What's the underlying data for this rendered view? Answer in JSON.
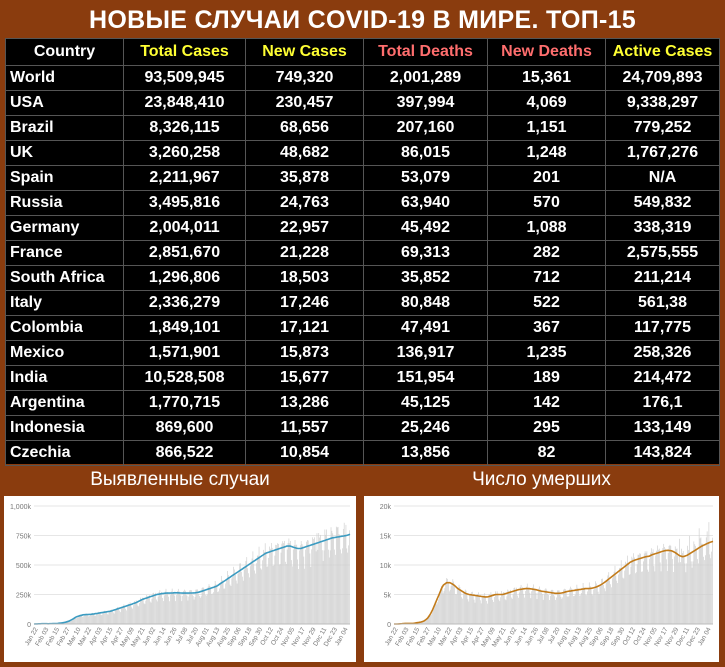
{
  "title": "НОВЫЕ СЛУЧАИ COVID-19 В МИРЕ. ТОП-15",
  "table": {
    "headers": [
      "Country",
      "Total Cases",
      "New Cases",
      "Total Deaths",
      "New Deaths",
      "Active Cases"
    ],
    "rows": [
      [
        "World",
        "93,509,945",
        "749,320",
        "2,001,289",
        "15,361",
        "24,709,893"
      ],
      [
        "USA",
        "23,848,410",
        "230,457",
        "397,994",
        "4,069",
        "9,338,297"
      ],
      [
        "Brazil",
        "8,326,115",
        "68,656",
        "207,160",
        "1,151",
        "779,252"
      ],
      [
        "UK",
        "3,260,258",
        "48,682",
        "86,015",
        "1,248",
        "1,767,276"
      ],
      [
        "Spain",
        "2,211,967",
        "35,878",
        "53,079",
        "201",
        "N/A"
      ],
      [
        "Russia",
        "3,495,816",
        "24,763",
        "63,940",
        "570",
        "549,832"
      ],
      [
        "Germany",
        "2,004,011",
        "22,957",
        "45,492",
        "1,088",
        "338,319"
      ],
      [
        "France",
        "2,851,670",
        "21,228",
        "69,313",
        "282",
        "2,575,555"
      ],
      [
        "South Africa",
        "1,296,806",
        "18,503",
        "35,852",
        "712",
        "211,214"
      ],
      [
        "Italy",
        "2,336,279",
        "17,246",
        "80,848",
        "522",
        "561,38"
      ],
      [
        "Colombia",
        "1,849,101",
        "17,121",
        "47,491",
        "367",
        "117,775"
      ],
      [
        "Mexico",
        "1,571,901",
        "15,873",
        "136,917",
        "1,235",
        "258,326"
      ],
      [
        "India",
        "10,528,508",
        "15,677",
        "151,954",
        "189",
        "214,472"
      ],
      [
        "Argentina",
        "1,770,715",
        "13,286",
        "45,125",
        "142",
        "176,1"
      ],
      [
        "Indonesia",
        "869,600",
        "11,557",
        "25,246",
        "295",
        "133,149"
      ],
      [
        "Czechia",
        "866,522",
        "10,854",
        "13,856",
        "82",
        "143,824"
      ]
    ]
  },
  "chart_data": [
    {
      "type": "bar",
      "title": "Выявленные случаи",
      "ylim": [
        0,
        1000
      ],
      "yticks": [
        "0",
        "250k",
        "500k",
        "750k",
        "1,000k"
      ],
      "xticks": [
        "Jan 22",
        "Feb 03",
        "Feb 15",
        "Feb 27",
        "Mar 10",
        "Mar 22",
        "Apr 03",
        "Apr 15",
        "Apr 27",
        "May 09",
        "May 21",
        "Jun 02",
        "Jun 14",
        "Jun 26",
        "Jul 08",
        "Jul 20",
        "Aug 01",
        "Aug 13",
        "Aug 25",
        "Sep 06",
        "Sep 18",
        "Sep 30",
        "Oct 12",
        "Oct 24",
        "Nov 05",
        "Nov 17",
        "Nov 29",
        "Dec 11",
        "Dec 23",
        "Jan 04"
      ],
      "trend": [
        0,
        1,
        2,
        3,
        2,
        3,
        4,
        6,
        10,
        15,
        25,
        40,
        60,
        70,
        78,
        80,
        82,
        85,
        90,
        95,
        100,
        105,
        110,
        120,
        130,
        140,
        150,
        160,
        170,
        180,
        195,
        210,
        220,
        230,
        240,
        250,
        255,
        260,
        262,
        262,
        265,
        264,
        262,
        262,
        262,
        263,
        265,
        270,
        280,
        290,
        300,
        310,
        320,
        340,
        360,
        380,
        400,
        420,
        440,
        460,
        480,
        500,
        520,
        540,
        560,
        580,
        600,
        610,
        620,
        630,
        640,
        650,
        660,
        660,
        650,
        640,
        640,
        650,
        660,
        670,
        680,
        690,
        700,
        710,
        720,
        730,
        735,
        740,
        745,
        750,
        760
      ],
      "bar_ratio_max": 1.12,
      "grid": true,
      "series_color": "#3b9bc1",
      "bar_color": "#cfcfcf"
    },
    {
      "type": "bar",
      "title": "Число умерших",
      "ylim": [
        0,
        20
      ],
      "yticks": [
        "0",
        "5k",
        "10k",
        "15k",
        "20k"
      ],
      "xticks": [
        "Jan 22",
        "Feb 03",
        "Feb 15",
        "Feb 27",
        "Mar 10",
        "Mar 22",
        "Apr 03",
        "Apr 15",
        "Apr 27",
        "May 09",
        "May 21",
        "Jun 02",
        "Jun 14",
        "Jun 26",
        "Jul 08",
        "Jul 20",
        "Aug 01",
        "Aug 13",
        "Aug 25",
        "Sep 06",
        "Sep 18",
        "Sep 30",
        "Oct 12",
        "Oct 24",
        "Nov 05",
        "Nov 17",
        "Nov 29",
        "Dec 11",
        "Dec 23",
        "Jan 04"
      ],
      "trend": [
        0,
        0,
        0.05,
        0.1,
        0.1,
        0.1,
        0.2,
        0.3,
        0.5,
        1,
        2,
        3.5,
        5,
        6.5,
        7,
        7,
        6.6,
        6,
        5.6,
        5.2,
        5,
        4.9,
        4.8,
        4.7,
        4.6,
        4.6,
        4.8,
        5,
        5,
        5,
        5.2,
        5.4,
        5.6,
        5.8,
        5.9,
        6,
        6,
        5.9,
        5.8,
        5.6,
        5.5,
        5.4,
        5.3,
        5.2,
        5.2,
        5.3,
        5.5,
        5.6,
        5.7,
        5.8,
        5.9,
        6,
        6,
        6.1,
        6.3,
        6.6,
        7,
        7.5,
        8,
        8.5,
        9,
        9.5,
        10,
        10.5,
        10.8,
        11,
        11.2,
        11.4,
        11.5,
        11.8,
        12,
        12.2,
        12.4,
        12.5,
        12.4,
        12.1,
        11.6,
        11.4,
        11.6,
        12,
        12.4,
        12.8,
        13.2,
        13.5,
        13.8,
        14
      ],
      "bar_ratio_max": 1.25,
      "grid": true,
      "series_color": "#c27b1a",
      "bar_color": "#cfcfcf"
    }
  ]
}
